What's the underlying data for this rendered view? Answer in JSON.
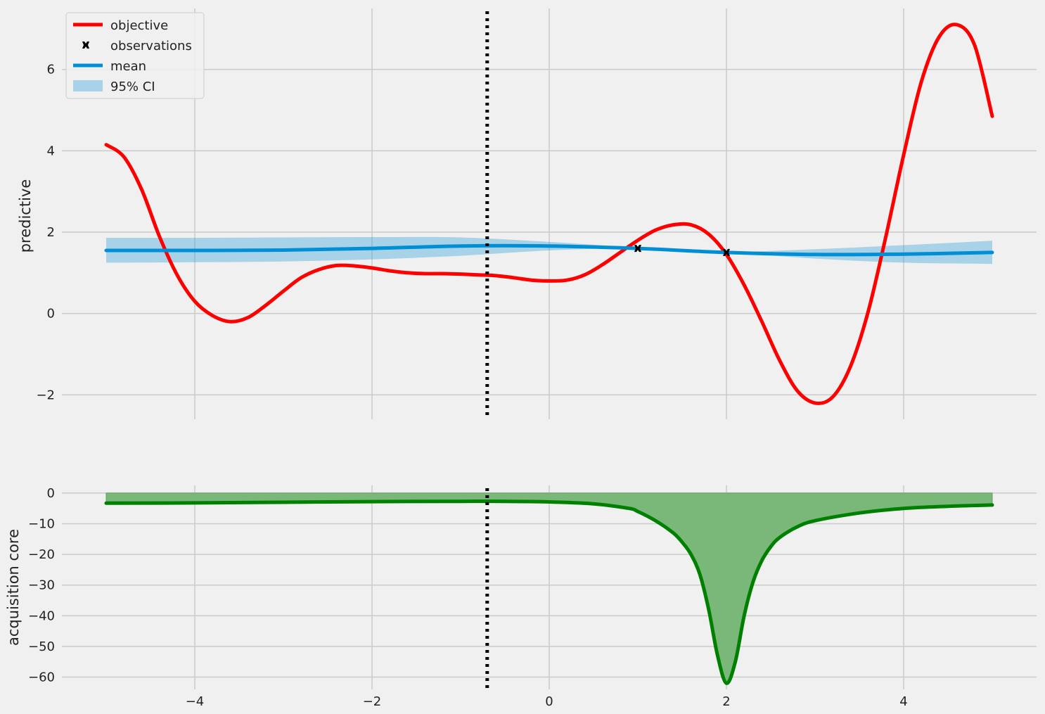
{
  "chart_data": [
    {
      "type": "line",
      "ylabel": "predictive",
      "xlim": [
        -5.5,
        5.5
      ],
      "ylim": [
        -2.6,
        7.5
      ],
      "xticks": [
        -4,
        -2,
        0,
        2,
        4
      ],
      "xtick_labels": [
        "−4",
        "−2",
        "0",
        "2",
        "4"
      ],
      "yticks": [
        -2,
        0,
        2,
        4,
        6
      ],
      "ytick_labels": [
        "−2",
        "0",
        "2",
        "4",
        "6"
      ],
      "grid": true,
      "legend": {
        "placement": "top-left",
        "entries": [
          "objective",
          "observations",
          "mean",
          "95% CI"
        ]
      },
      "vline_x": -0.7,
      "series": [
        {
          "name": "objective",
          "color": "#ff0000",
          "x": [
            -5,
            -4.8,
            -4.6,
            -4.4,
            -4.2,
            -4.0,
            -3.8,
            -3.6,
            -3.4,
            -3.2,
            -3.0,
            -2.8,
            -2.6,
            -2.4,
            -2.2,
            -2.0,
            -1.8,
            -1.6,
            -1.4,
            -1.2,
            -1.0,
            -0.8,
            -0.6,
            -0.4,
            -0.2,
            0.0,
            0.2,
            0.4,
            0.6,
            0.8,
            1.0,
            1.2,
            1.4,
            1.6,
            1.8,
            2.0,
            2.2,
            2.4,
            2.6,
            2.8,
            3.0,
            3.2,
            3.4,
            3.6,
            3.8,
            4.0,
            4.2,
            4.4,
            4.6,
            4.8,
            5.0
          ],
          "values": [
            4.15,
            3.85,
            3.05,
            1.9,
            0.95,
            0.3,
            -0.05,
            -0.2,
            -0.1,
            0.2,
            0.55,
            0.88,
            1.08,
            1.18,
            1.17,
            1.12,
            1.05,
            1.0,
            0.98,
            0.98,
            0.97,
            0.95,
            0.93,
            0.88,
            0.82,
            0.8,
            0.82,
            0.95,
            1.2,
            1.5,
            1.8,
            2.05,
            2.18,
            2.18,
            1.95,
            1.45,
            0.7,
            -0.2,
            -1.15,
            -1.9,
            -2.2,
            -2.05,
            -1.3,
            0.05,
            1.9,
            3.9,
            5.7,
            6.8,
            7.1,
            6.6,
            4.85
          ]
        },
        {
          "name": "mean",
          "color": "#008fd5",
          "x": [
            -5,
            -4,
            -3,
            -2,
            -1,
            0,
            1,
            2,
            3,
            4,
            5
          ],
          "values": [
            1.55,
            1.55,
            1.56,
            1.6,
            1.66,
            1.66,
            1.6,
            1.5,
            1.45,
            1.46,
            1.5
          ],
          "ci_lower": [
            1.25,
            1.26,
            1.28,
            1.33,
            1.42,
            1.55,
            1.6,
            1.5,
            1.35,
            1.25,
            1.22
          ],
          "ci_upper": [
            1.86,
            1.86,
            1.87,
            1.88,
            1.87,
            1.76,
            1.62,
            1.52,
            1.58,
            1.68,
            1.79
          ]
        },
        {
          "name": "observations",
          "type": "scatter",
          "color": "#000000",
          "x": [
            1.0,
            2.0
          ],
          "values": [
            1.6,
            1.5
          ]
        }
      ]
    },
    {
      "type": "area",
      "ylabel": "acquisition core",
      "xlim": [
        -5.5,
        5.5
      ],
      "ylim": [
        -64,
        2.5
      ],
      "xticks": [
        -4,
        -2,
        0,
        2,
        4
      ],
      "xtick_labels": [
        "−4",
        "−2",
        "0",
        "2",
        "4"
      ],
      "yticks": [
        0,
        -10,
        -20,
        -30,
        -40,
        -50,
        -60
      ],
      "ytick_labels": [
        "0",
        "−10",
        "−20",
        "−30",
        "−40",
        "−50",
        "−60"
      ],
      "grid": true,
      "vline_x": -0.7,
      "fill_color": "#7ab87a",
      "line_color": "#008000",
      "x": [
        -5,
        -4,
        -3,
        -2,
        -1,
        -0.5,
        0,
        0.5,
        0.9,
        1.0,
        1.2,
        1.4,
        1.5,
        1.6,
        1.7,
        1.8,
        1.9,
        2.0,
        2.1,
        2.2,
        2.3,
        2.4,
        2.5,
        2.6,
        2.8,
        3.0,
        3.5,
        4.0,
        4.5,
        5.0
      ],
      "values": [
        -3.3,
        -3.2,
        -3.0,
        -2.8,
        -2.7,
        -2.7,
        -2.9,
        -3.5,
        -5.0,
        -6.0,
        -9.0,
        -13.0,
        -16.0,
        -20.0,
        -26.5,
        -38.0,
        -53.0,
        -62.0,
        -55.0,
        -40.0,
        -29.0,
        -22.0,
        -17.5,
        -14.5,
        -11.0,
        -9.0,
        -6.5,
        -5.0,
        -4.3,
        -3.9
      ]
    }
  ]
}
